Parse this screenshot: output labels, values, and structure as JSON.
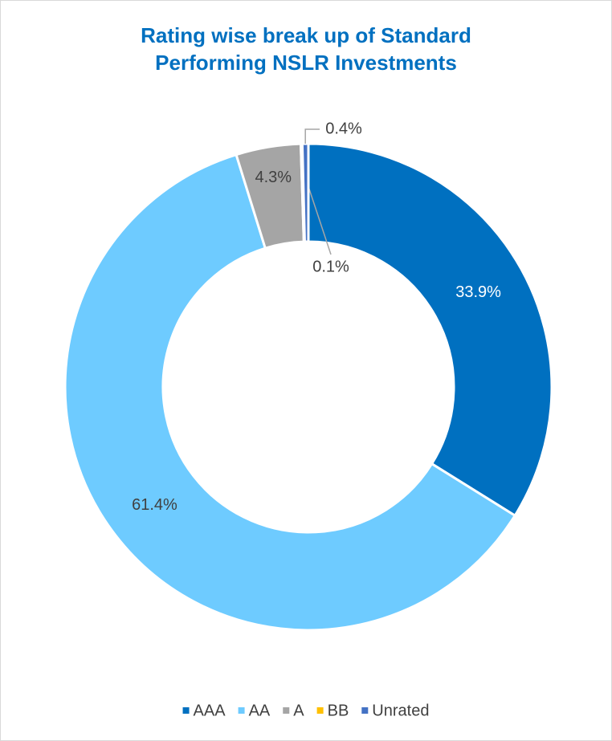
{
  "chart_data": {
    "type": "donut",
    "title": "Rating wise break up of Standard Performing NSLR Investments",
    "categories": [
      "AAA",
      "AA",
      "A",
      "BB",
      "Unrated"
    ],
    "values": [
      33.9,
      61.4,
      4.3,
      0.1,
      0.4
    ],
    "value_labels": [
      "33.9%",
      "61.4%",
      "4.3%",
      "0.1%",
      "0.4%"
    ],
    "colors": [
      "#0070c0",
      "#6ecbff",
      "#a5a5a5",
      "#ffc000",
      "#4472c4"
    ],
    "legend": "bottom"
  }
}
